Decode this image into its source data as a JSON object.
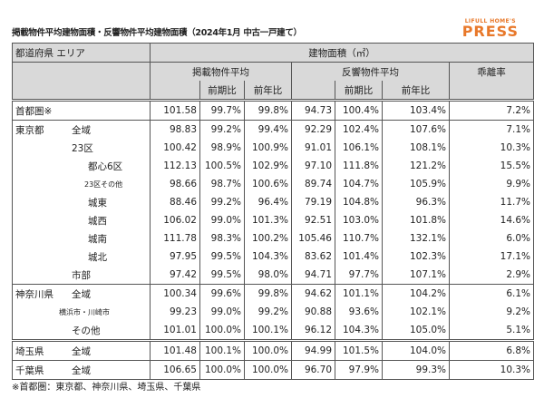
{
  "title": "掲載物件平均建物面積・反響物件平均建物面積（2024年1月 中古一戸建て）",
  "logo": {
    "line1": "LIFULL HOME'S",
    "line2": "PRESS"
  },
  "colors": {
    "accent": "#e8782a",
    "header_bg": "#d9d9d9"
  },
  "header": {
    "area": "都道府県 エリア",
    "measure": "建物面積（㎡）",
    "listed": "掲載物件平均",
    "response": "反響物件平均",
    "deviation": "乖離率",
    "qoq": "前期比",
    "yoy": "前年比",
    "qoq2": "前期比",
    "yoy2": "前年比"
  },
  "rows": [
    {
      "pref": "首都圏※",
      "area": "",
      "l": "101.58",
      "lq": "99.7%",
      "ly": "99.8%",
      "r": "94.73",
      "rq": "100.4%",
      "ry": "103.4%",
      "d": "7.2%"
    },
    {
      "pref": "東京都",
      "area": "全域",
      "l": "98.83",
      "lq": "99.2%",
      "ly": "99.4%",
      "r": "92.29",
      "rq": "102.4%",
      "ry": "107.6%",
      "d": "7.1%"
    },
    {
      "pref": "",
      "area": "23区",
      "l": "100.42",
      "lq": "98.9%",
      "ly": "100.9%",
      "r": "91.01",
      "rq": "106.1%",
      "ry": "108.1%",
      "d": "10.3%"
    },
    {
      "pref": "",
      "area": "都心6区",
      "l": "112.13",
      "lq": "100.5%",
      "ly": "102.9%",
      "r": "97.10",
      "rq": "111.8%",
      "ry": "121.2%",
      "d": "15.5%"
    },
    {
      "pref": "",
      "area": "23区その他",
      "l": "98.66",
      "lq": "98.7%",
      "ly": "100.6%",
      "r": "89.74",
      "rq": "104.7%",
      "ry": "105.9%",
      "d": "9.9%"
    },
    {
      "pref": "",
      "area": "城東",
      "l": "88.46",
      "lq": "99.2%",
      "ly": "96.4%",
      "r": "79.19",
      "rq": "104.8%",
      "ry": "96.3%",
      "d": "11.7%"
    },
    {
      "pref": "",
      "area": "城西",
      "l": "106.02",
      "lq": "99.0%",
      "ly": "101.3%",
      "r": "92.51",
      "rq": "103.0%",
      "ry": "101.8%",
      "d": "14.6%"
    },
    {
      "pref": "",
      "area": "城南",
      "l": "111.78",
      "lq": "98.3%",
      "ly": "100.2%",
      "r": "105.46",
      "rq": "110.7%",
      "ry": "132.1%",
      "d": "6.0%"
    },
    {
      "pref": "",
      "area": "城北",
      "l": "97.95",
      "lq": "99.5%",
      "ly": "104.3%",
      "r": "83.62",
      "rq": "101.4%",
      "ry": "102.3%",
      "d": "17.1%"
    },
    {
      "pref": "",
      "area": "市部",
      "l": "97.42",
      "lq": "99.5%",
      "ly": "98.0%",
      "r": "94.71",
      "rq": "97.7%",
      "ry": "107.1%",
      "d": "2.9%"
    },
    {
      "pref": "神奈川県",
      "area": "全域",
      "l": "100.34",
      "lq": "99.6%",
      "ly": "99.8%",
      "r": "94.62",
      "rq": "101.1%",
      "ry": "104.2%",
      "d": "6.1%"
    },
    {
      "pref": "",
      "area": "横浜市・川崎市",
      "l": "99.23",
      "lq": "99.0%",
      "ly": "99.2%",
      "r": "90.88",
      "rq": "93.6%",
      "ry": "102.1%",
      "d": "9.2%"
    },
    {
      "pref": "",
      "area": "その他",
      "l": "101.01",
      "lq": "100.0%",
      "ly": "100.1%",
      "r": "96.12",
      "rq": "104.3%",
      "ry": "105.0%",
      "d": "5.1%"
    },
    {
      "pref": "埼玉県",
      "area": "全域",
      "l": "101.48",
      "lq": "100.1%",
      "ly": "100.0%",
      "r": "94.99",
      "rq": "101.5%",
      "ry": "104.0%",
      "d": "6.8%"
    },
    {
      "pref": "千葉県",
      "area": "全域",
      "l": "106.65",
      "lq": "100.0%",
      "ly": "100.0%",
      "r": "96.70",
      "rq": "97.9%",
      "ry": "99.3%",
      "d": "10.3%"
    }
  ],
  "note": "※首都圏：東京都、神奈川県、埼玉県、千葉県"
}
